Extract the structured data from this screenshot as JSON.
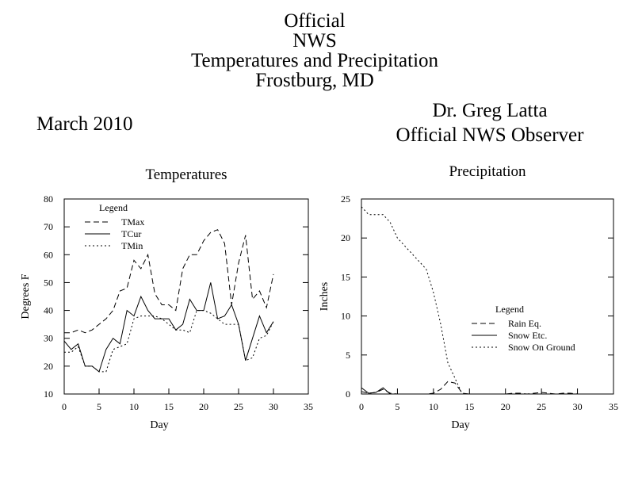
{
  "header": {
    "title_lines": [
      "Official",
      "NWS",
      "Temperatures and Precipitation",
      "Frostburg, MD"
    ],
    "month": "March 2010",
    "observer_lines": [
      "Dr. Greg Latta",
      "Official NWS Observer"
    ]
  },
  "chart_data": [
    {
      "type": "line",
      "title": "Temperatures",
      "xlabel": "Day",
      "ylabel": "Degrees F",
      "xlim": [
        0,
        35
      ],
      "ylim": [
        10,
        80
      ],
      "xticks": [
        0,
        5,
        10,
        15,
        20,
        25,
        30,
        35
      ],
      "yticks": [
        10,
        20,
        30,
        40,
        50,
        60,
        70,
        80
      ],
      "legend_title": "Legend",
      "legend_position": "top-left",
      "series": [
        {
          "name": "TMax",
          "style": "dashed",
          "x": [
            0,
            1,
            2,
            3,
            4,
            5,
            6,
            7,
            8,
            9,
            10,
            11,
            12,
            13,
            14,
            15,
            16,
            17,
            18,
            19,
            20,
            21,
            22,
            23,
            24,
            25,
            26,
            27,
            28,
            29,
            30
          ],
          "y": [
            32,
            32,
            33,
            32,
            33,
            35,
            37,
            40,
            47,
            48,
            58,
            55,
            60,
            46,
            42,
            42,
            40,
            55,
            60,
            60,
            65,
            68,
            69,
            64,
            42,
            57,
            67,
            44,
            47,
            41,
            53
          ]
        },
        {
          "name": "TCur",
          "style": "solid",
          "x": [
            0,
            1,
            2,
            3,
            4,
            5,
            6,
            7,
            8,
            9,
            10,
            11,
            12,
            13,
            14,
            15,
            16,
            17,
            18,
            19,
            20,
            21,
            22,
            23,
            24,
            25,
            26,
            27,
            28,
            29,
            30
          ],
          "y": [
            29,
            26,
            28,
            20,
            20,
            18,
            26,
            30,
            28,
            40,
            38,
            45,
            40,
            37,
            37,
            37,
            33,
            35,
            44,
            40,
            40,
            50,
            37,
            38,
            42,
            35,
            22,
            30,
            38,
            32,
            36
          ]
        },
        {
          "name": "TMin",
          "style": "dotted",
          "x": [
            0,
            1,
            2,
            3,
            4,
            5,
            6,
            7,
            8,
            9,
            10,
            11,
            12,
            13,
            14,
            15,
            16,
            17,
            18,
            19,
            20,
            21,
            22,
            23,
            24,
            25,
            26,
            27,
            28,
            29,
            30
          ],
          "y": [
            25,
            25,
            27,
            20,
            20,
            18,
            18,
            26,
            27,
            28,
            37,
            38,
            38,
            38,
            37,
            35,
            33,
            33,
            32,
            40,
            40,
            39,
            37,
            35,
            35,
            35,
            22,
            23,
            30,
            31,
            36
          ]
        }
      ]
    },
    {
      "type": "line",
      "title": "Precipitation",
      "xlabel": "Day",
      "ylabel": "Inches",
      "xlim": [
        0,
        35
      ],
      "ylim": [
        0,
        25
      ],
      "xticks": [
        0,
        5,
        10,
        15,
        20,
        25,
        30,
        35
      ],
      "yticks": [
        0,
        5,
        10,
        15,
        20,
        25
      ],
      "legend_title": "Legend",
      "legend_position": "center-right",
      "series": [
        {
          "name": "Rain Eq.",
          "style": "dashed",
          "x": [
            0,
            1,
            2,
            3,
            4,
            5,
            6,
            7,
            8,
            9,
            10,
            11,
            12,
            13,
            14,
            15,
            16,
            17,
            18,
            19,
            20,
            21,
            22,
            23,
            24,
            25,
            26,
            27,
            28,
            29,
            30
          ],
          "y": [
            0.3,
            0.1,
            0.2,
            0.6,
            0.1,
            0,
            0,
            0,
            0,
            0,
            0.1,
            0.6,
            1.6,
            1.4,
            0.1,
            0,
            0,
            0,
            0,
            0,
            0,
            0.1,
            0.1,
            0,
            0.1,
            0.2,
            0.1,
            0,
            0.1,
            0.1,
            0
          ]
        },
        {
          "name": "Snow Etc.",
          "style": "solid",
          "x": [
            0,
            1,
            2,
            3,
            4,
            5,
            6,
            7,
            8,
            9,
            10,
            11,
            12,
            13,
            14,
            15,
            16,
            17,
            18,
            19,
            20,
            21,
            22,
            23,
            24,
            25,
            26,
            27,
            28,
            29,
            30
          ],
          "y": [
            0.8,
            0.1,
            0.2,
            0.8,
            0,
            0,
            0,
            0,
            0,
            0,
            0,
            0,
            0,
            0,
            0,
            0,
            0,
            0,
            0,
            0,
            0,
            0,
            0,
            0,
            0,
            0,
            0,
            0,
            0,
            0,
            0
          ]
        },
        {
          "name": "Snow On Ground",
          "style": "dotted",
          "x": [
            0,
            1,
            2,
            3,
            4,
            5,
            6,
            7,
            8,
            9,
            10,
            11,
            12,
            13,
            14,
            15,
            16,
            17,
            18,
            19,
            20,
            21,
            22,
            23,
            24,
            25,
            26,
            27,
            28,
            29,
            30
          ],
          "y": [
            24,
            23,
            23,
            23,
            22,
            20,
            19,
            18,
            17,
            16,
            13,
            9,
            4,
            2,
            0,
            0,
            0,
            0,
            0,
            0,
            0,
            0,
            0,
            0,
            0,
            0,
            0,
            0,
            0,
            0,
            0
          ]
        }
      ]
    }
  ]
}
